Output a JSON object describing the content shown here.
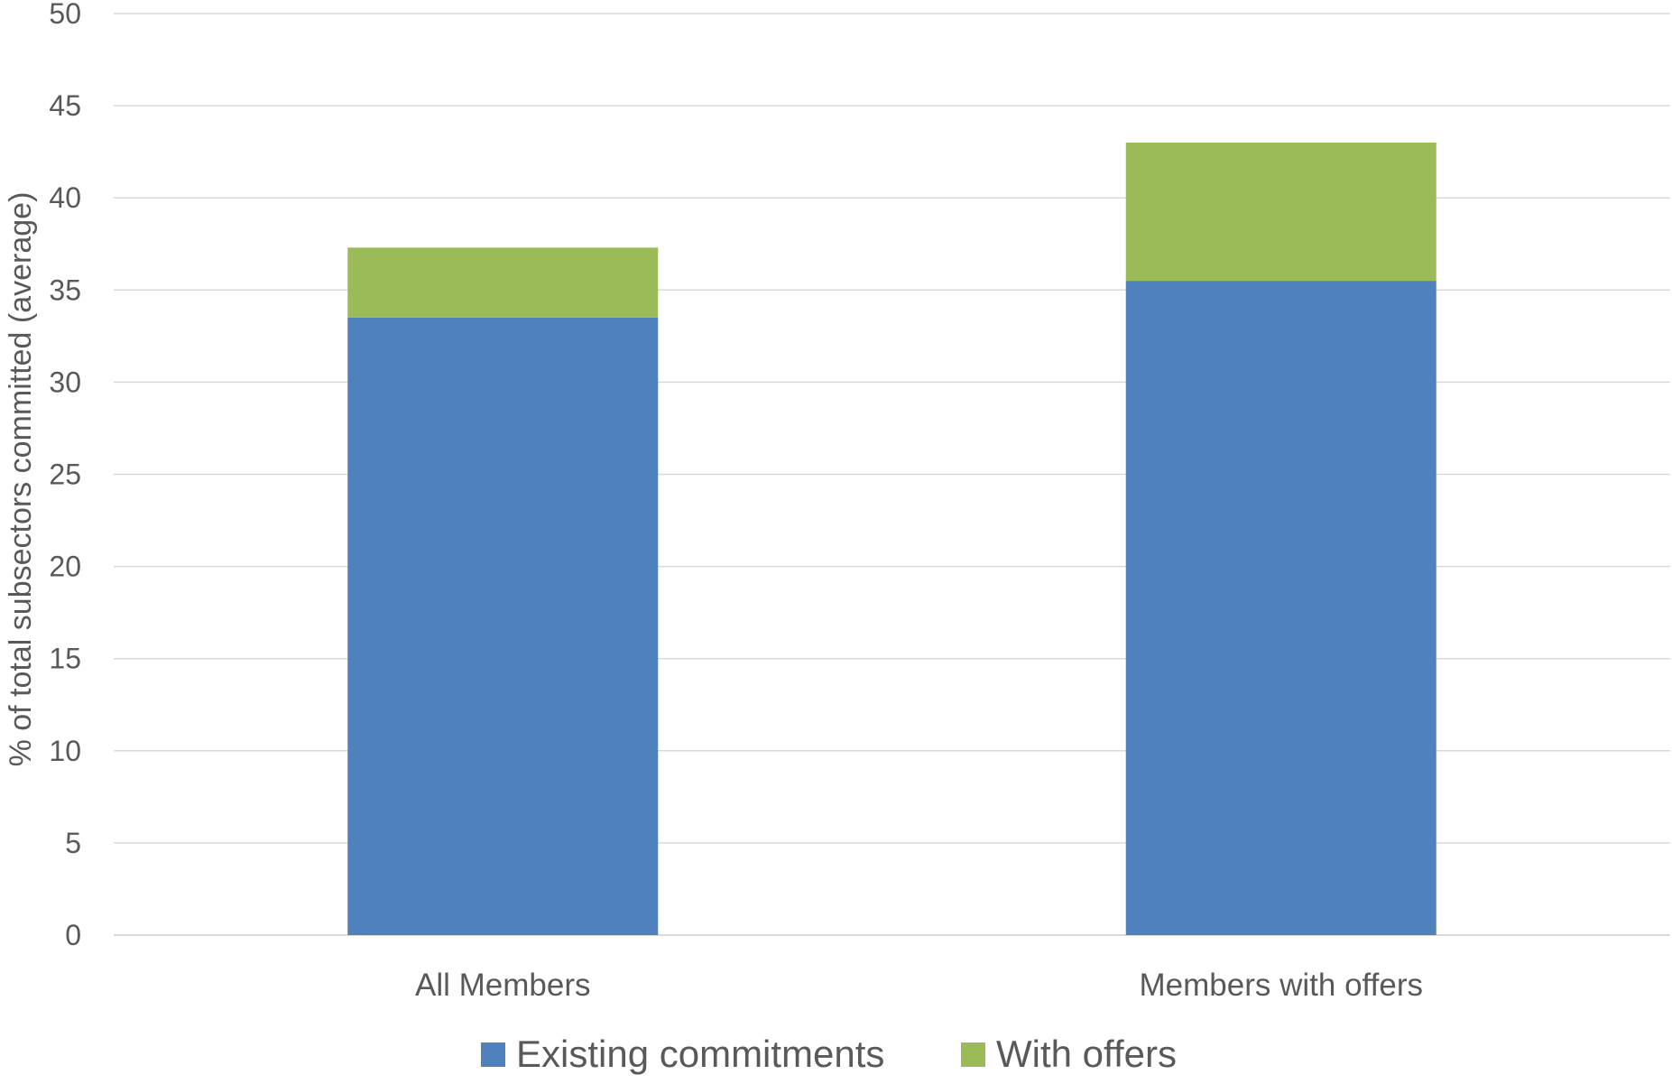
{
  "chart_data": {
    "type": "bar",
    "stacked": true,
    "title": "",
    "xlabel": "",
    "ylabel": "% of total subsectors committed (average)",
    "ylim": [
      0,
      50
    ],
    "ytick_step": 5,
    "grid": true,
    "legend_position": "bottom",
    "categories": [
      "All Members",
      "Members with offers"
    ],
    "series": [
      {
        "name": "Existing commitments",
        "color": "#4f81bd",
        "values": [
          33.5,
          35.5
        ]
      },
      {
        "name": "With offers",
        "color": "#9bbb59",
        "values": [
          3.8,
          7.5
        ]
      }
    ]
  }
}
